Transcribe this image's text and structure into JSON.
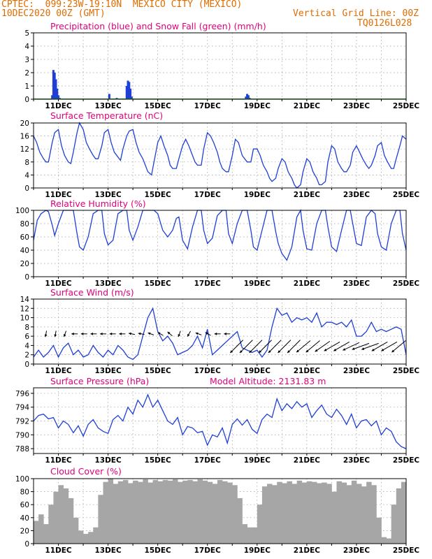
{
  "header": {
    "line1_left": "CPTEC:  099:23W-19:10N  MEXICO CITY (MEXICO)",
    "line2_left": "10DEC2020 00Z (GMT)",
    "line2_right": "Vertical Grid Line: 00Z",
    "line3_right": "TQ0126L028"
  },
  "colors": {
    "header": "#e06c00",
    "title": "#e0007a",
    "line": "#1f3fd6",
    "precip": "#1f3fd6",
    "snow": "#1aa51a",
    "cloud": "#a6a6a6"
  },
  "x_axis": {
    "start": "2020-12-10T00Z",
    "end": "2020-12-25T00Z",
    "tick_labels": [
      "11DEC",
      "13DEC",
      "15DEC",
      "17DEC",
      "19DEC",
      "21DEC",
      "23DEC",
      "25DEC"
    ],
    "tick_days": [
      1,
      3,
      5,
      7,
      9,
      11,
      13,
      15
    ]
  },
  "chart_data": [
    {
      "type": "bar",
      "title": "Precipitation (blue) and Snow Fall (green) (mm/h)",
      "ylim": [
        0,
        5
      ],
      "yticks": [
        0,
        1,
        2,
        3,
        4,
        5
      ],
      "series": [
        {
          "name": "Precipitation",
          "x": [
            0.75,
            0.8,
            0.85,
            0.9,
            0.95,
            1.0,
            1.05,
            3.05,
            3.35,
            3.75,
            3.8,
            3.85,
            3.9,
            3.95,
            8.55,
            8.6,
            8.65,
            8.7
          ],
          "values": [
            0.3,
            2.2,
            2.0,
            1.5,
            0.8,
            0.3,
            0.1,
            0.4,
            0.1,
            1.0,
            1.4,
            1.3,
            0.8,
            0.2,
            0.2,
            0.4,
            0.3,
            0.1
          ]
        },
        {
          "name": "Snow Fall",
          "x": [],
          "values": []
        }
      ]
    },
    {
      "type": "line",
      "title": "Surface Temperature (nC)",
      "ylim": [
        0,
        20
      ],
      "yticks": [
        0,
        4,
        8,
        12,
        16,
        20
      ],
      "x": [
        0,
        0.125,
        0.25,
        0.4,
        0.5,
        0.6,
        0.75,
        0.85,
        1.0,
        1.125,
        1.25,
        1.4,
        1.5,
        1.6,
        1.75,
        1.85,
        2.0,
        2.125,
        2.25,
        2.4,
        2.5,
        2.6,
        2.75,
        2.85,
        3.0,
        3.125,
        3.25,
        3.4,
        3.5,
        3.6,
        3.75,
        3.85,
        4.0,
        4.125,
        4.25,
        4.4,
        4.5,
        4.6,
        4.75,
        4.85,
        5.0,
        5.125,
        5.25,
        5.4,
        5.5,
        5.6,
        5.75,
        5.85,
        6.0,
        6.125,
        6.25,
        6.4,
        6.5,
        6.6,
        6.75,
        6.85,
        7.0,
        7.125,
        7.25,
        7.4,
        7.5,
        7.6,
        7.75,
        7.85,
        8.0,
        8.125,
        8.25,
        8.4,
        8.5,
        8.6,
        8.75,
        8.85,
        9.0,
        9.125,
        9.25,
        9.4,
        9.5,
        9.6,
        9.75,
        9.85,
        10.0,
        10.125,
        10.25,
        10.4,
        10.5,
        10.6,
        10.75,
        10.85,
        11.0,
        11.125,
        11.25,
        11.4,
        11.5,
        11.6,
        11.75,
        11.85,
        12.0,
        12.125,
        12.25,
        12.4,
        12.5,
        12.6,
        12.75,
        12.85,
        13.0,
        13.125,
        13.25,
        13.4,
        13.5,
        13.6,
        13.75,
        13.85,
        14.0,
        14.125,
        14.25,
        14.4,
        14.5,
        14.6,
        14.75,
        14.85,
        15.0
      ],
      "values": [
        16,
        14,
        11,
        9,
        8,
        8,
        14,
        17,
        18,
        13,
        10,
        8,
        7.5,
        11,
        17,
        20,
        18,
        14,
        12,
        10,
        9,
        9,
        13,
        17,
        18,
        14,
        11,
        9.5,
        8.5,
        12,
        16,
        17.5,
        18,
        14,
        11,
        9,
        7,
        5,
        4,
        8,
        14,
        16,
        13,
        10,
        7,
        6,
        6,
        9,
        13,
        15,
        13,
        10,
        8,
        7,
        7,
        12,
        17,
        16,
        14,
        11,
        8,
        6,
        5,
        5,
        10,
        15,
        14,
        10,
        9,
        8,
        8,
        12,
        12,
        10,
        7,
        5,
        3,
        2,
        3,
        6,
        9,
        8,
        5,
        3,
        1,
        0,
        1,
        5,
        9,
        8,
        5,
        3,
        1,
        1,
        2,
        8,
        13,
        12,
        8,
        6,
        5,
        5,
        7,
        11,
        13,
        11,
        9,
        7,
        6,
        7,
        10,
        13,
        14,
        10,
        8,
        6,
        6,
        9,
        13,
        16,
        15
      ]
    },
    {
      "type": "line",
      "title": "Relative Humidity (%)",
      "ylim": [
        0,
        100
      ],
      "yticks": [
        0,
        20,
        40,
        60,
        80,
        100
      ],
      "x": [
        0,
        0.15,
        0.3,
        0.5,
        0.6,
        0.75,
        0.85,
        1.0,
        1.2,
        1.4,
        1.6,
        1.75,
        1.85,
        2.0,
        2.2,
        2.4,
        2.6,
        2.75,
        2.85,
        3.0,
        3.2,
        3.4,
        3.6,
        3.75,
        3.85,
        4.0,
        4.2,
        4.4,
        4.6,
        4.75,
        4.85,
        5.0,
        5.2,
        5.4,
        5.6,
        5.75,
        5.85,
        6.0,
        6.2,
        6.4,
        6.6,
        6.75,
        6.85,
        7.0,
        7.2,
        7.4,
        7.6,
        7.75,
        7.85,
        8.0,
        8.2,
        8.4,
        8.6,
        8.75,
        8.85,
        9.0,
        9.2,
        9.4,
        9.6,
        9.75,
        9.85,
        10.0,
        10.2,
        10.4,
        10.6,
        10.75,
        10.85,
        11.0,
        11.2,
        11.4,
        11.6,
        11.75,
        11.85,
        12.0,
        12.2,
        12.4,
        12.6,
        12.75,
        12.85,
        13.0,
        13.2,
        13.4,
        13.6,
        13.75,
        13.85,
        14.0,
        14.2,
        14.4,
        14.6,
        14.75,
        14.85,
        15.0
      ],
      "values": [
        55,
        85,
        95,
        100,
        98,
        78,
        62,
        80,
        100,
        100,
        100,
        65,
        45,
        40,
        60,
        95,
        100,
        100,
        65,
        48,
        55,
        95,
        100,
        100,
        70,
        55,
        75,
        100,
        100,
        100,
        100,
        95,
        70,
        60,
        70,
        88,
        90,
        55,
        42,
        75,
        100,
        100,
        70,
        50,
        58,
        92,
        100,
        100,
        65,
        50,
        80,
        100,
        100,
        70,
        45,
        40,
        70,
        100,
        100,
        68,
        50,
        35,
        25,
        45,
        90,
        100,
        70,
        42,
        40,
        80,
        100,
        100,
        75,
        45,
        38,
        70,
        100,
        100,
        80,
        50,
        47,
        90,
        100,
        95,
        65,
        45,
        40,
        80,
        100,
        100,
        65,
        40
      ]
    },
    {
      "type": "line",
      "title": "Surface Wind (m/s)",
      "ylim": [
        0,
        14
      ],
      "yticks": [
        0,
        2,
        4,
        6,
        8,
        10,
        12,
        14
      ],
      "x": [
        0,
        0.2,
        0.4,
        0.6,
        0.8,
        1.0,
        1.2,
        1.4,
        1.6,
        1.8,
        2.0,
        2.2,
        2.4,
        2.6,
        2.8,
        3.0,
        3.2,
        3.4,
        3.6,
        3.8,
        4.0,
        4.2,
        4.4,
        4.6,
        4.8,
        5.0,
        5.2,
        5.4,
        5.6,
        5.8,
        6.0,
        6.2,
        6.4,
        6.6,
        6.8,
        7.0,
        7.2,
        7.4,
        7.6,
        7.8,
        8.0,
        8.2,
        8.4,
        8.6,
        8.8,
        9.0,
        9.2,
        9.4,
        9.6,
        9.8,
        10.0,
        10.2,
        10.4,
        10.6,
        10.8,
        11.0,
        11.2,
        11.4,
        11.6,
        11.8,
        12.0,
        12.2,
        12.4,
        12.6,
        12.8,
        13.0,
        13.2,
        13.4,
        13.6,
        13.8,
        14.0,
        14.2,
        14.4,
        14.6,
        14.8,
        15.0
      ],
      "values": [
        1.5,
        3,
        1.5,
        2.5,
        4,
        1.5,
        3.5,
        4.5,
        2,
        3,
        1.5,
        2,
        4,
        2.5,
        1.5,
        3,
        2,
        4,
        3,
        1.5,
        1,
        2,
        6,
        10,
        12,
        7,
        5,
        6,
        4.5,
        2,
        2.5,
        3,
        4,
        6,
        3.5,
        7.5,
        2,
        3,
        4,
        5,
        6,
        7,
        3.5,
        3,
        2.5,
        3,
        1.5,
        3,
        8,
        12,
        10.5,
        11,
        9,
        10,
        9.5,
        10,
        9,
        11,
        8,
        9,
        9,
        8.5,
        9,
        8,
        9.5,
        6,
        6,
        7,
        9,
        7,
        7.5,
        7,
        7.5,
        8,
        7.5,
        2
      ],
      "arrow_direction_deg": [
        190,
        190,
        200,
        270,
        270,
        270,
        270,
        270,
        270,
        280,
        280,
        290,
        300,
        310,
        200,
        210,
        290,
        300,
        270,
        270,
        225,
        225,
        225,
        225,
        225,
        225,
        225,
        230,
        230,
        235,
        240,
        240,
        245,
        250,
        250,
        240,
        240,
        230
      ]
    },
    {
      "type": "line",
      "title": "Surface Pressure (hPa)",
      "subtitle": "Model Altitude: 2131.83 m",
      "ylim": [
        787.3,
        796.8
      ],
      "yticks": [
        788,
        790,
        792,
        794,
        796
      ],
      "x": [
        0,
        0.2,
        0.4,
        0.6,
        0.8,
        1.0,
        1.2,
        1.4,
        1.6,
        1.8,
        2.0,
        2.2,
        2.4,
        2.6,
        2.8,
        3.0,
        3.2,
        3.4,
        3.6,
        3.8,
        4.0,
        4.2,
        4.4,
        4.6,
        4.8,
        5.0,
        5.2,
        5.4,
        5.6,
        5.8,
        6.0,
        6.2,
        6.4,
        6.6,
        6.8,
        7.0,
        7.2,
        7.4,
        7.6,
        7.8,
        8.0,
        8.2,
        8.4,
        8.6,
        8.8,
        9.0,
        9.2,
        9.4,
        9.6,
        9.8,
        10.0,
        10.2,
        10.4,
        10.6,
        10.8,
        11.0,
        11.2,
        11.4,
        11.6,
        11.8,
        12.0,
        12.2,
        12.4,
        12.6,
        12.8,
        13.0,
        13.2,
        13.4,
        13.6,
        13.8,
        14.0,
        14.2,
        14.4,
        14.6,
        14.8,
        15.0
      ],
      "values": [
        792,
        792.8,
        793,
        792.3,
        792.5,
        791,
        792,
        791.5,
        790.3,
        791.3,
        789.8,
        791.5,
        792.2,
        791,
        790.5,
        790.2,
        792.2,
        792.8,
        792,
        794,
        793,
        795,
        794,
        795.8,
        794,
        795,
        793.5,
        792,
        791.5,
        792.5,
        790,
        791.2,
        791,
        790.3,
        790.5,
        788.5,
        790,
        789.7,
        791,
        788.8,
        791.5,
        792.3,
        791.4,
        792.2,
        790.8,
        790.2,
        792.2,
        793,
        792.5,
        795.2,
        793.5,
        794.5,
        793.8,
        794.8,
        794,
        794.5,
        792.5,
        793.5,
        794.3,
        793,
        792.5,
        793.7,
        792.8,
        791.5,
        793,
        791,
        792,
        792.2,
        791.3,
        792,
        790,
        791,
        790.5,
        789,
        788.3,
        788
      ]
    },
    {
      "type": "bar",
      "title": "Cloud Cover (%)",
      "ylim": [
        0,
        100
      ],
      "yticks": [
        0,
        20,
        40,
        60,
        80,
        100
      ],
      "x": [
        0.1,
        0.3,
        0.5,
        0.7,
        0.9,
        1.1,
        1.3,
        1.5,
        1.7,
        1.9,
        2.1,
        2.3,
        2.5,
        2.7,
        2.9,
        3.1,
        3.3,
        3.5,
        3.7,
        3.9,
        4.1,
        4.3,
        4.5,
        4.7,
        4.9,
        5.1,
        5.3,
        5.5,
        5.7,
        5.9,
        6.1,
        6.3,
        6.5,
        6.7,
        6.9,
        7.1,
        7.3,
        7.5,
        7.7,
        7.9,
        8.1,
        8.3,
        8.5,
        8.7,
        8.9,
        9.1,
        9.3,
        9.5,
        9.7,
        9.9,
        10.1,
        10.3,
        10.5,
        10.7,
        10.9,
        11.1,
        11.3,
        11.5,
        11.7,
        11.9,
        12.1,
        12.3,
        12.5,
        12.7,
        12.9,
        13.1,
        13.3,
        13.5,
        13.7,
        13.9,
        14.1,
        14.3,
        14.5,
        14.7,
        14.9
      ],
      "values": [
        35,
        45,
        30,
        60,
        80,
        90,
        85,
        70,
        40,
        20,
        15,
        18,
        25,
        75,
        95,
        100,
        92,
        96,
        98,
        93,
        97,
        95,
        99,
        94,
        98,
        96,
        98,
        97,
        99,
        95,
        97,
        98,
        96,
        99,
        97,
        95,
        92,
        98,
        96,
        94,
        90,
        70,
        30,
        25,
        25,
        60,
        88,
        92,
        90,
        95,
        93,
        96,
        92,
        97,
        94,
        96,
        95,
        93,
        94,
        92,
        80,
        96,
        94,
        90,
        97,
        92,
        88,
        95,
        90,
        40,
        10,
        8,
        60,
        85,
        95
      ]
    }
  ]
}
